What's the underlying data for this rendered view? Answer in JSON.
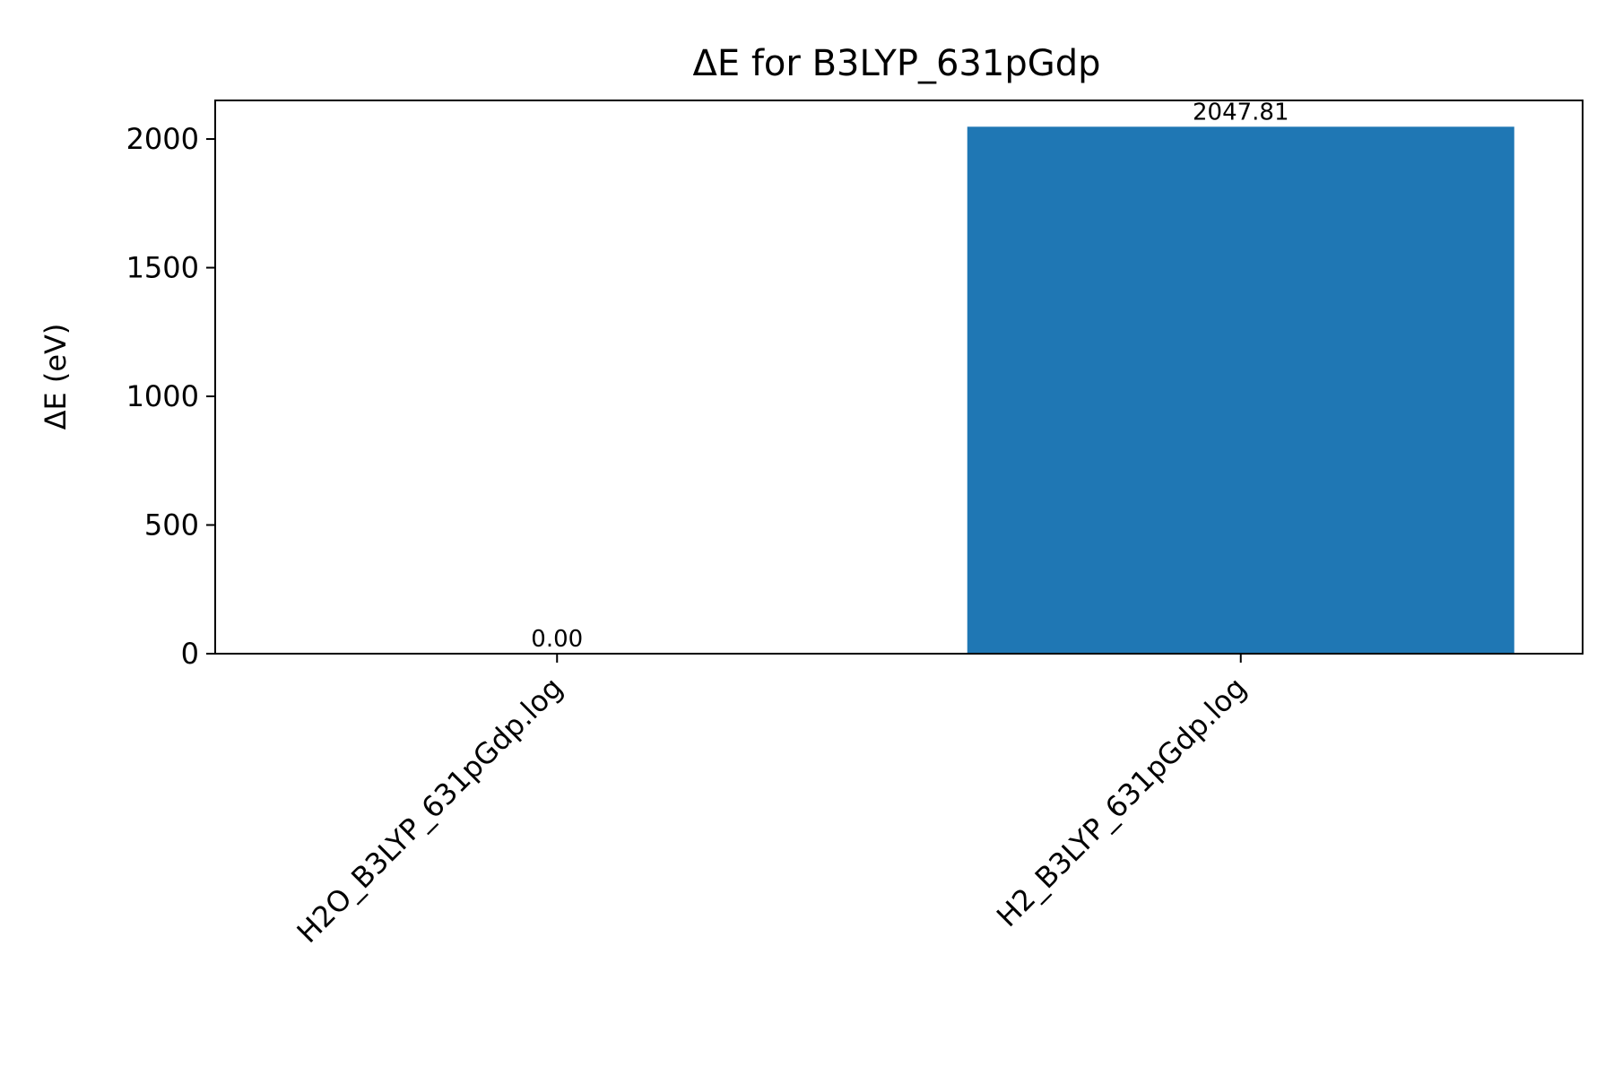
{
  "chart_data": {
    "type": "bar",
    "title": "ΔE for B3LYP_631pGdp",
    "xlabel": "",
    "ylabel": "ΔE (eV)",
    "categories": [
      "H2O_B3LYP_631pGdp.log",
      "H2_B3LYP_631pGdp.log"
    ],
    "values": [
      0.0,
      2047.81
    ],
    "data_labels": [
      "0.00",
      "2047.81"
    ],
    "ylim": [
      0,
      2150
    ],
    "yticks": [
      0,
      500,
      1000,
      1500,
      2000
    ],
    "ytick_labels": [
      "0",
      "500",
      "1000",
      "1500",
      "2000"
    ],
    "bar_color": "#1f77b4",
    "grid": false,
    "legend": "none"
  }
}
